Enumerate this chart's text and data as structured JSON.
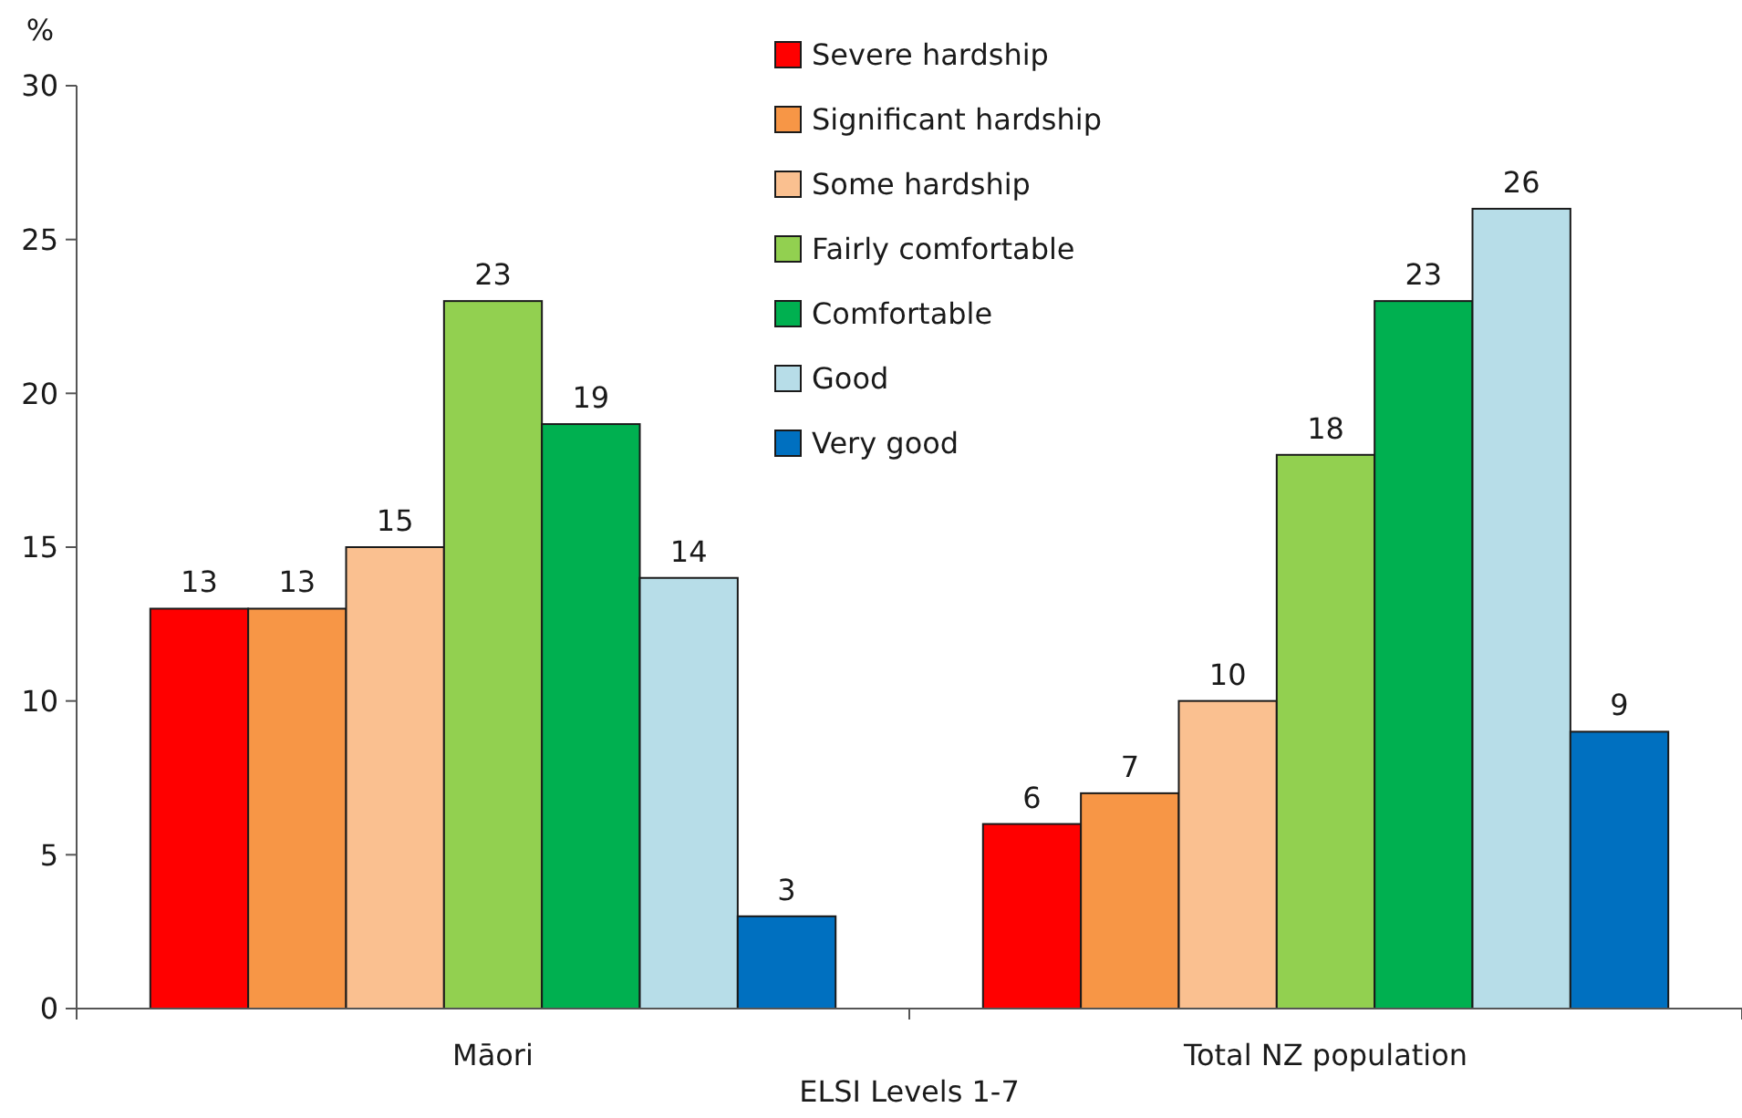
{
  "chart_data": {
    "type": "bar",
    "xlabel": "ELSI Levels 1-7",
    "ylabel": "%",
    "categories": [
      "Māori",
      "Total NZ population"
    ],
    "series": [
      {
        "name": "Severe hardship",
        "color": "#ff0000",
        "values": [
          13,
          6
        ]
      },
      {
        "name": "Significant hardship",
        "color": "#f79646",
        "values": [
          13,
          7
        ]
      },
      {
        "name": "Some hardship",
        "color": "#fac090",
        "values": [
          15,
          10
        ]
      },
      {
        "name": "Fairly comfortable",
        "color": "#92d050",
        "values": [
          23,
          18
        ]
      },
      {
        "name": "Comfortable",
        "color": "#00b050",
        "values": [
          19,
          23
        ]
      },
      {
        "name": "Good",
        "color": "#b7dde8",
        "values": [
          14,
          26
        ]
      },
      {
        "name": "Very good",
        "color": "#0070c0",
        "values": [
          3,
          9
        ]
      }
    ],
    "ylim": [
      0,
      30
    ],
    "yticks": [
      0,
      5,
      10,
      15,
      20,
      25,
      30
    ],
    "grid": false,
    "legend": "top",
    "data_labels": true
  }
}
